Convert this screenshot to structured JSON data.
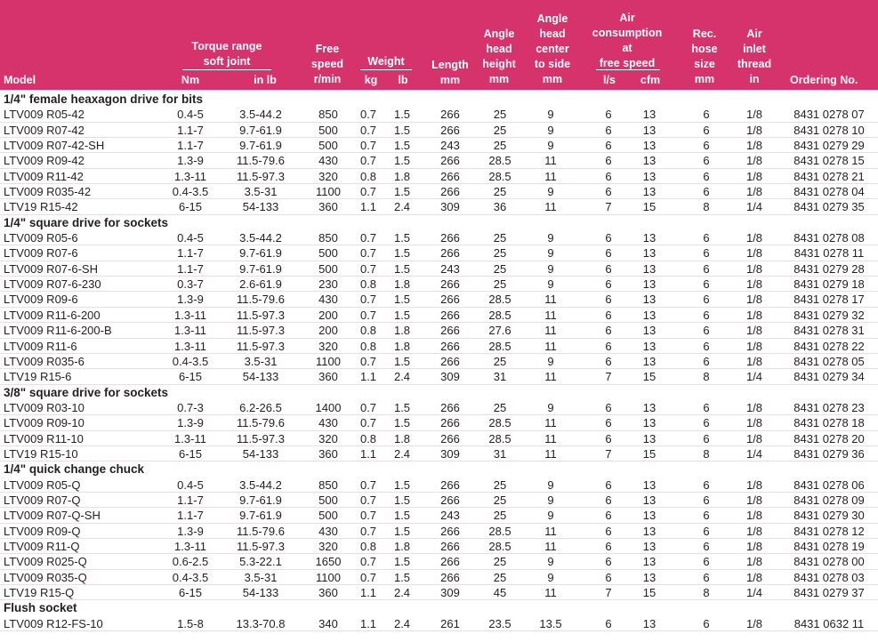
{
  "header": {
    "model": "Model",
    "torque": [
      "Torque range",
      "soft joint"
    ],
    "nm": "Nm",
    "inlb": "in lb",
    "free_speed": [
      "Free",
      "speed",
      "r/min"
    ],
    "weight": "Weight",
    "kg": "kg",
    "lb": "lb",
    "length": [
      "Length",
      "mm"
    ],
    "angle_height": [
      "Angle",
      "head",
      "height",
      "mm"
    ],
    "angle_center": [
      "Angle",
      "head",
      "center",
      "to side",
      "mm"
    ],
    "air": [
      "Air",
      "consumption",
      "at",
      "free speed"
    ],
    "ls": "l/s",
    "cfm": "cfm",
    "hose": [
      "Rec.",
      "hose",
      "size",
      "mm"
    ],
    "inlet": [
      "Air",
      "inlet",
      "thread",
      "in"
    ],
    "ordering": "Ordering No."
  },
  "sections": [
    {
      "title": "1/4\" female heaxagon drive for bits",
      "rows": [
        [
          "LTV009 R05-42",
          "0.4-5",
          "3.5-44.2",
          "850",
          "0.7",
          "1.5",
          "266",
          "25",
          "9",
          "6",
          "13",
          "6",
          "1/8",
          "8431 0278 07"
        ],
        [
          "LTV009 R07-42",
          "1.1-7",
          "9.7-61.9",
          "500",
          "0.7",
          "1.5",
          "266",
          "25",
          "9",
          "6",
          "13",
          "6",
          "1/8",
          "8431 0278 10"
        ],
        [
          "LTV009 R07-42-SH",
          "1.1-7",
          "9.7-61.9",
          "500",
          "0.7",
          "1.5",
          "243",
          "25",
          "9",
          "6",
          "13",
          "6",
          "1/8",
          "8431 0279 29"
        ],
        [
          "LTV009 R09-42",
          "1.3-9",
          "11.5-79.6",
          "430",
          "0.7",
          "1.5",
          "266",
          "28.5",
          "11",
          "6",
          "13",
          "6",
          "1/8",
          "8431 0278 15"
        ],
        [
          "LTV009 R11-42",
          "1.3-11",
          "11.5-97.3",
          "320",
          "0.8",
          "1.8",
          "266",
          "28.5",
          "11",
          "6",
          "13",
          "6",
          "1/8",
          "8431 0278 21"
        ],
        [
          "LTV009 R035-42",
          "0.4-3.5",
          "3.5-31",
          "1100",
          "0.7",
          "1.5",
          "266",
          "25",
          "9",
          "6",
          "13",
          "6",
          "1/8",
          "8431 0278 04"
        ],
        [
          "LTV19 R15-42",
          "6-15",
          "54-133",
          "360",
          "1.1",
          "2.4",
          "309",
          "36",
          "11",
          "7",
          "15",
          "8",
          "1/4",
          "8431 0279 35"
        ]
      ]
    },
    {
      "title": "1/4\" square drive for sockets",
      "rows": [
        [
          "LTV009 R05-6",
          "0.4-5",
          "3.5-44.2",
          "850",
          "0.7",
          "1.5",
          "266",
          "25",
          "9",
          "6",
          "13",
          "6",
          "1/8",
          "8431 0278 08"
        ],
        [
          "LTV009 R07-6",
          "1.1-7",
          "9.7-61.9",
          "500",
          "0.7",
          "1.5",
          "266",
          "25",
          "9",
          "6",
          "13",
          "6",
          "1/8",
          "8431 0278 11"
        ],
        [
          "LTV009 R07-6-SH",
          "1.1-7",
          "9.7-61.9",
          "500",
          "0.7",
          "1.5",
          "243",
          "25",
          "9",
          "6",
          "13",
          "6",
          "1/8",
          "8431 0279 28"
        ],
        [
          "LTV009 R07-6-230",
          "0.3-7",
          "2.6-61.9",
          "230",
          "0.8",
          "1.8",
          "266",
          "25",
          "9",
          "6",
          "13",
          "6",
          "1/8",
          "8431 0279 18"
        ],
        [
          "LTV009 R09-6",
          "1.3-9",
          "11.5-79.6",
          "430",
          "0.7",
          "1.5",
          "266",
          "28.5",
          "11",
          "6",
          "13",
          "6",
          "1/8",
          "8431 0278 17"
        ],
        [
          "LTV009 R11-6-200",
          "1.3-11",
          "11.5-97.3",
          "200",
          "0.7",
          "1.5",
          "266",
          "28.5",
          "11",
          "6",
          "13",
          "6",
          "1/8",
          "8431 0279 32"
        ],
        [
          "LTV009 R11-6-200-B",
          "1.3-11",
          "11.5-97.3",
          "200",
          "0.8",
          "1.8",
          "266",
          "27.6",
          "11",
          "6",
          "13",
          "6",
          "1/8",
          "8431 0278 31"
        ],
        [
          "LTV009 R11-6",
          "1.3-11",
          "11.5-97.3",
          "320",
          "0.8",
          "1.8",
          "266",
          "28.5",
          "11",
          "6",
          "13",
          "6",
          "1/8",
          "8431 0278 22"
        ],
        [
          "LTV009 R035-6",
          "0.4-3.5",
          "3.5-31",
          "1100",
          "0.7",
          "1.5",
          "266",
          "25",
          "9",
          "6",
          "13",
          "6",
          "1/8",
          "8431 0278 05"
        ],
        [
          "LTV19 R15-6",
          "6-15",
          "54-133",
          "360",
          "1.1",
          "2.4",
          "309",
          "31",
          "11",
          "7",
          "15",
          "8",
          "1/4",
          "8431 0279 34"
        ]
      ]
    },
    {
      "title": "3/8\" square drive for sockets",
      "rows": [
        [
          "LTV009 R03-10",
          "0.7-3",
          "6.2-26.5",
          "1400",
          "0.7",
          "1.5",
          "266",
          "25",
          "9",
          "6",
          "13",
          "6",
          "1/8",
          "8431 0278 23"
        ],
        [
          "LTV009 R09-10",
          "1.3-9",
          "11.5-79.6",
          "430",
          "0.7",
          "1.5",
          "266",
          "28.5",
          "11",
          "6",
          "13",
          "6",
          "1/8",
          "8431 0278 18"
        ],
        [
          "LTV009 R11-10",
          "1.3-11",
          "11.5-97.3",
          "320",
          "0.8",
          "1.8",
          "266",
          "28.5",
          "11",
          "6",
          "13",
          "6",
          "1/8",
          "8431 0278 20"
        ],
        [
          "LTV19 R15-10",
          "6-15",
          "54-133",
          "360",
          "1.1",
          "2.4",
          "309",
          "31",
          "11",
          "7",
          "15",
          "8",
          "1/4",
          "8431 0279 36"
        ]
      ]
    },
    {
      "title": "1/4\" quick change chuck",
      "rows": [
        [
          "LTV009 R05-Q",
          "0.4-5",
          "3.5-44.2",
          "850",
          "0.7",
          "1.5",
          "266",
          "25",
          "9",
          "6",
          "13",
          "6",
          "1/8",
          "8431 0278 06"
        ],
        [
          "LTV009 R07-Q",
          "1.1-7",
          "9.7-61.9",
          "500",
          "0.7",
          "1.5",
          "266",
          "25",
          "9",
          "6",
          "13",
          "6",
          "1/8",
          "8431 0278 09"
        ],
        [
          "LTV009 R07-Q-SH",
          "1.1-7",
          "9.7-61.9",
          "500",
          "0.7",
          "1.5",
          "243",
          "25",
          "9",
          "6",
          "13",
          "6",
          "1/8",
          "8431 0279 30"
        ],
        [
          "LTV009 R09-Q",
          "1.3-9",
          "11.5-79.6",
          "430",
          "0.7",
          "1.5",
          "266",
          "28.5",
          "11",
          "6",
          "13",
          "6",
          "1/8",
          "8431 0278 12"
        ],
        [
          "LTV009 R11-Q",
          "1.3-11",
          "11.5-97.3",
          "320",
          "0.8",
          "1.8",
          "266",
          "28.5",
          "11",
          "6",
          "13",
          "6",
          "1/8",
          "8431 0278 19"
        ],
        [
          "LTV009 R025-Q",
          "0.6-2.5",
          "5.3-22.1",
          "1650",
          "0.7",
          "1.5",
          "266",
          "25",
          "9",
          "6",
          "13",
          "6",
          "1/8",
          "8431 0278 00"
        ],
        [
          "LTV009 R035-Q",
          "0.4-3.5",
          "3.5-31",
          "1100",
          "0.7",
          "1.5",
          "266",
          "25",
          "9",
          "6",
          "13",
          "6",
          "1/8",
          "8431 0278 03"
        ],
        [
          "LTV19 R15-Q",
          "6-15",
          "54-133",
          "360",
          "1.1",
          "2.4",
          "309",
          "45",
          "11",
          "7",
          "15",
          "8",
          "1/4",
          "8431 0279 37"
        ]
      ]
    },
    {
      "title": "Flush socket",
      "rows": [
        [
          "LTV009 R12-FS-10",
          "1.5-8",
          "13.3-70.8",
          "340",
          "1.1",
          "2.4",
          "261",
          "23.5",
          "13.5",
          "6",
          "13",
          "6",
          "1/8",
          "8431 0632 11"
        ]
      ]
    }
  ]
}
